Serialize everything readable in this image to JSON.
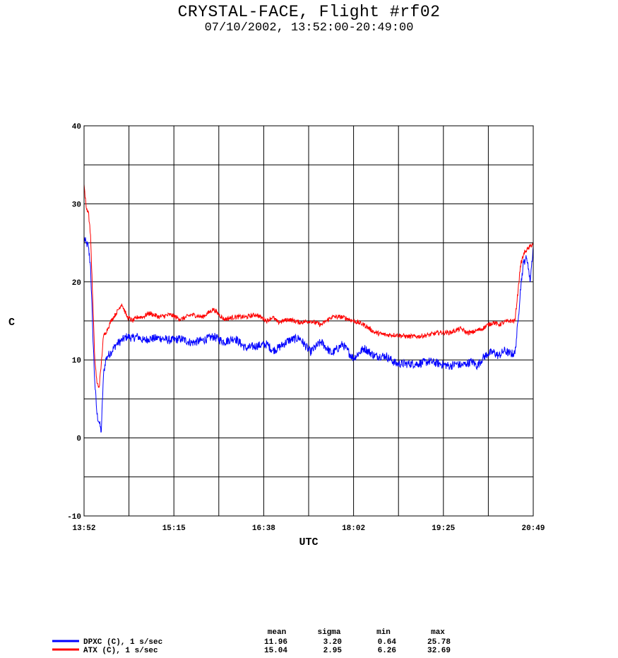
{
  "title": "CRYSTAL-FACE, Flight #rf02",
  "subtitle": "07/10/2002, 13:52:00-20:49:00",
  "chart_data": {
    "type": "line",
    "xlabel": "UTC",
    "ylabel": "C",
    "xlim_minutes": [
      0,
      417
    ],
    "ylim": [
      -10,
      40
    ],
    "x_tick_labels": [
      "13:52",
      "15:15",
      "16:38",
      "18:02",
      "19:25",
      "20:49"
    ],
    "y_ticks": [
      -10,
      0,
      10,
      20,
      30,
      40
    ],
    "grid": true,
    "series": [
      {
        "name": "DPXC (C), 1 s/sec",
        "color": "#0000ff",
        "x_minutes": [
          0,
          2,
          4,
          6,
          8,
          10,
          12,
          14,
          16,
          18,
          20,
          22,
          25,
          30,
          35,
          40,
          45,
          50,
          55,
          60,
          70,
          80,
          90,
          100,
          110,
          120,
          130,
          140,
          150,
          160,
          170,
          175,
          180,
          190,
          200,
          210,
          220,
          230,
          240,
          250,
          260,
          270,
          280,
          290,
          300,
          310,
          320,
          330,
          340,
          345,
          350,
          355,
          360,
          365,
          370,
          375,
          380,
          385,
          390,
          395,
          400,
          403,
          405,
          408,
          410,
          412,
          414,
          417
        ],
        "values": [
          25.5,
          25,
          24.5,
          22,
          14,
          7,
          3,
          2,
          0.8,
          8,
          10,
          10.5,
          11,
          12,
          12.5,
          13,
          12.8,
          13,
          12.5,
          12.7,
          12.8,
          12.5,
          12.7,
          12.2,
          12.5,
          13,
          12.3,
          12.8,
          11.5,
          11.8,
          12,
          11.2,
          11.5,
          12.5,
          12.8,
          11,
          12.3,
          10.8,
          12,
          10.2,
          11.5,
          10.5,
          10.5,
          9.5,
          9.5,
          9.5,
          9.8,
          9.5,
          9.2,
          9.5,
          9.3,
          9.5,
          9.8,
          9.2,
          10.2,
          10.8,
          11,
          10.5,
          11.2,
          10.8,
          10.8,
          15,
          19,
          22.5,
          23,
          22.5,
          20,
          24.5
        ]
      },
      {
        "name": "ATX (C), 1 s/sec",
        "color": "#ff0000",
        "x_minutes": [
          0,
          2,
          4,
          6,
          8,
          10,
          12,
          14,
          16,
          18,
          20,
          22,
          25,
          30,
          35,
          40,
          45,
          50,
          55,
          60,
          70,
          80,
          90,
          100,
          110,
          120,
          130,
          140,
          150,
          160,
          170,
          175,
          180,
          190,
          200,
          210,
          220,
          230,
          240,
          250,
          260,
          270,
          280,
          290,
          300,
          310,
          320,
          330,
          340,
          345,
          350,
          355,
          360,
          365,
          370,
          375,
          380,
          385,
          390,
          395,
          400,
          403,
          405,
          408,
          410,
          412,
          414,
          417
        ],
        "values": [
          32.5,
          29.5,
          29,
          26,
          18,
          10,
          7,
          6.5,
          9.5,
          13,
          13.5,
          14,
          15,
          16,
          17.2,
          15.5,
          15,
          15.5,
          15.5,
          16,
          15.5,
          15.8,
          15.2,
          15.8,
          15.5,
          16.5,
          15.2,
          15.5,
          15.5,
          15.8,
          15,
          15.5,
          14.8,
          15.2,
          14.8,
          15,
          14.5,
          15.5,
          15.5,
          15,
          14.5,
          13.5,
          13.2,
          13.2,
          13,
          13,
          13.2,
          13.5,
          13.5,
          13.8,
          14,
          13.5,
          13.5,
          13.8,
          14,
          14.5,
          14.8,
          14.5,
          14.8,
          15,
          15,
          19,
          22,
          23.5,
          24,
          24.2,
          24.5,
          25
        ]
      }
    ],
    "stats": {
      "headers": [
        "mean",
        "sigma",
        "min",
        "max"
      ],
      "rows": [
        {
          "name": "DPXC (C), 1 s/sec",
          "values": [
            "11.96",
            "3.20",
            "0.64",
            "25.78"
          ]
        },
        {
          "name": "ATX (C), 1 s/sec",
          "values": [
            "15.04",
            "2.95",
            "6.26",
            "32.69"
          ]
        }
      ]
    }
  }
}
